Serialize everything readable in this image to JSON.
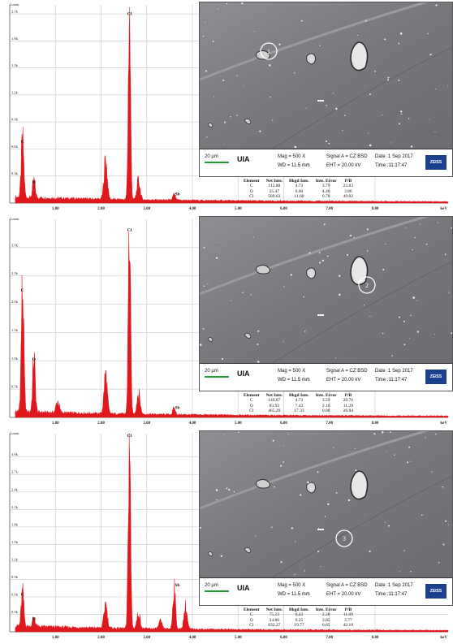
{
  "chart_data": [
    {
      "type": "line",
      "ylabel": "Counts",
      "xlabel": "keV",
      "xlim": [
        0,
        9.6
      ],
      "ylim": [
        0,
        2200
      ],
      "x_ticks": [
        "1.00",
        "2.00",
        "3.00",
        "4.00",
        "5.00",
        "6.00",
        "7.00",
        "8.00"
      ],
      "y_ticks": [
        "0.3k",
        "0.6k",
        "0.9k",
        "1.2k",
        "1.5k",
        "1.8k",
        "2.1k"
      ],
      "peaks": [
        {
          "label": "C",
          "x": 0.28,
          "y": 640
        },
        {
          "label": "O",
          "x": 0.53,
          "y": 190
        },
        {
          "label": "Cl",
          "x": 2.62,
          "y": 2060
        },
        {
          "label": "Sb",
          "x": 3.6,
          "y": 60
        }
      ],
      "minor_peaks": [
        {
          "x": 2.1,
          "y": 440
        },
        {
          "x": 2.82,
          "y": 210
        }
      ],
      "sem": {
        "scale": "20 µm",
        "logo": "UIA",
        "mag": "Mag =   500 X",
        "wd": "WD = 11.5 mm",
        "signal": "Signal A = CZ BSD",
        "eht": "EHT = 20.00 kV",
        "date": "Date :1 Sep 2017",
        "time": "Time :11:17:47",
        "brand": "ZEISS",
        "marker": "1"
      },
      "table": {
        "headers": [
          "Element",
          "Net Inte.",
          "Bkgd Inte.",
          "Inte. Error",
          "P/B"
        ],
        "rows": [
          [
            "C",
            "112.80",
            "4.73",
            "3.79",
            "23.83"
          ],
          [
            "O",
            "25.47",
            "6.60",
            "4.46",
            "3.86"
          ],
          [
            "Cl",
            "569.63",
            "11.60",
            "0.78",
            "49.02"
          ]
        ]
      }
    },
    {
      "type": "line",
      "ylabel": "Counts",
      "xlabel": "keV",
      "xlim": [
        0,
        9.6
      ],
      "ylim": [
        0,
        3500
      ],
      "x_ticks": [
        "1.00",
        "2.00",
        "3.00",
        "4.00",
        "5.00",
        "6.00",
        "7.00",
        "8.00"
      ],
      "y_ticks": [
        "0.5k",
        "1.0k",
        "1.5k",
        "2.0k",
        "2.5k",
        "3.0k"
      ],
      "peaks": [
        {
          "label": "C",
          "x": 0.28,
          "y": 2180
        },
        {
          "label": "O",
          "x": 0.53,
          "y": 960
        },
        {
          "label": "Cl",
          "x": 2.62,
          "y": 3240
        },
        {
          "label": "Sb",
          "x": 3.6,
          "y": 110
        }
      ],
      "minor_peaks": [
        {
          "x": 2.1,
          "y": 700
        },
        {
          "x": 2.82,
          "y": 380
        },
        {
          "x": 1.05,
          "y": 200
        }
      ],
      "sem": {
        "scale": "20 µm",
        "logo": "UIA",
        "mag": "Mag =   500 X",
        "wd": "WD = 11.5 mm",
        "signal": "Signal A = CZ BSD",
        "eht": "EHT = 20.00 kV",
        "date": "Date :1 Sep 2017",
        "time": "Time :11:17:47",
        "brand": "ZEISS",
        "marker": "2"
      },
      "table": {
        "headers": [
          "Element",
          "Net Inte.",
          "Bkgd Inte.",
          "Inte. Error",
          "P/B"
        ],
        "rows": [
          [
            "C",
            "140.87",
            "4.73",
            "3.59",
            "29.76"
          ],
          [
            "O",
            "83.93",
            "7.43",
            "2.16",
            "11.29"
          ],
          [
            "Cl",
            "465.20",
            "17.33",
            "0.88",
            "26.84"
          ]
        ]
      }
    },
    {
      "type": "line",
      "ylabel": "Counts",
      "xlabel": "keV",
      "xlim": [
        0,
        9.6
      ],
      "ylim": [
        0,
        3400
      ],
      "x_ticks": [
        "1.00",
        "2.00",
        "3.00",
        "4.00",
        "5.00",
        "6.00",
        "7.00",
        "8.00"
      ],
      "y_ticks": [
        "0.3k",
        "0.6k",
        "0.9k",
        "1.2k",
        "1.5k",
        "1.8k",
        "2.1k",
        "2.4k",
        "2.7k",
        "3.0k"
      ],
      "peaks": [
        {
          "label": "C",
          "x": 0.28,
          "y": 580
        },
        {
          "label": "O",
          "x": 0.53,
          "y": 160
        },
        {
          "label": "Cl",
          "x": 2.62,
          "y": 3300
        },
        {
          "label": "Sb",
          "x": 3.6,
          "y": 740
        }
      ],
      "minor_peaks": [
        {
          "x": 2.1,
          "y": 420
        },
        {
          "x": 2.82,
          "y": 260
        },
        {
          "x": 3.85,
          "y": 380
        },
        {
          "x": 3.3,
          "y": 120
        }
      ],
      "sem": {
        "scale": "20 µm",
        "logo": "UIA",
        "mag": "Mag =   500 X",
        "wd": "WD = 11.5 mm",
        "signal": "Signal A = CZ BSD",
        "eht": "EHT = 20.00 kV",
        "date": "Date :1 Sep 2017",
        "time": "Time :11:17:47",
        "brand": "ZEISS",
        "marker": "3"
      },
      "table": {
        "headers": [
          "Element",
          "Net Inte.",
          "Bkgd Inte.",
          "Inte. Error",
          "P/B"
        ],
        "rows": [
          [
            "C",
            "75.23",
            "6.43",
            "2.28",
            "11.69"
          ],
          [
            "O",
            "34.80",
            "9.25",
            "3.85",
            "3.77"
          ],
          [
            "Cl",
            "832.27",
            "19.77",
            "0.65",
            "42.10"
          ]
        ]
      }
    }
  ]
}
